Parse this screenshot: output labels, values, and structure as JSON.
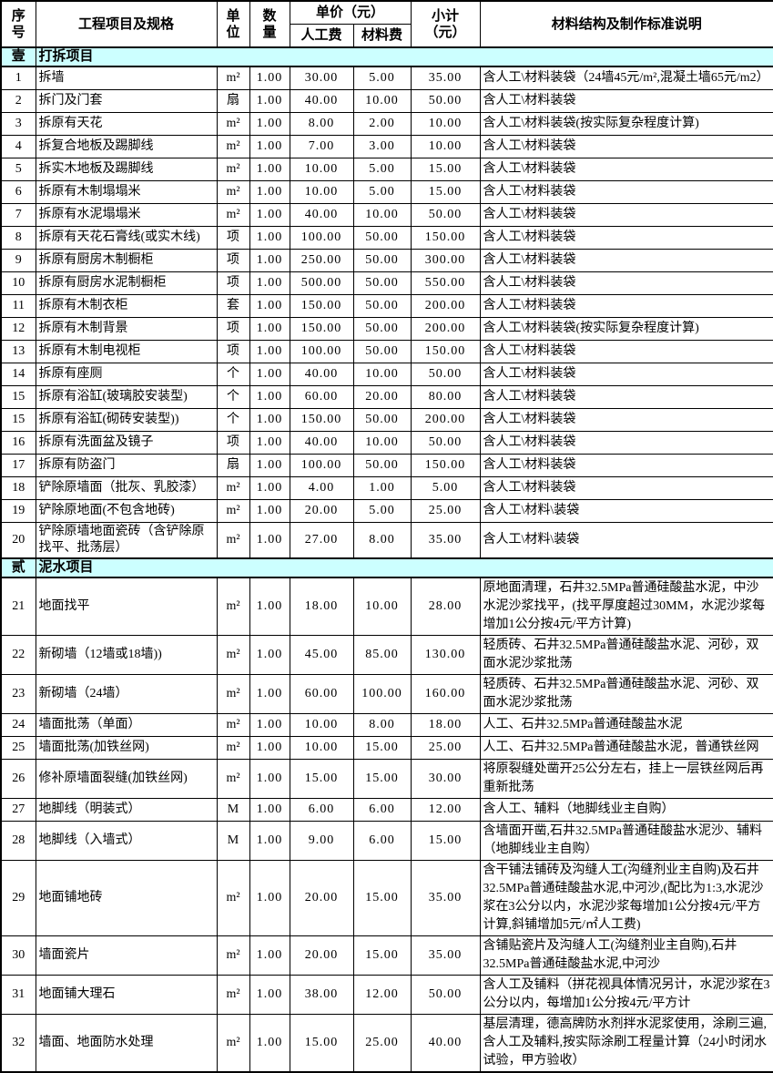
{
  "header": {
    "col_no": "序\n号",
    "col_item": "工程项目及规格",
    "col_unit": "单\n位",
    "col_qty": "数\n量",
    "col_unit_price": "单价（元）",
    "col_labor": "人工费",
    "col_material": "材料费",
    "col_subtotal": "小计\n（元）",
    "col_desc": "材料结构及制作标准说明"
  },
  "colors": {
    "section_bg": "#ccffff",
    "border": "#000000",
    "text": "#000000"
  },
  "sections": [
    {
      "index_label": "壹",
      "title": "打拆项目",
      "rows": [
        {
          "no": "1",
          "item": "拆墙",
          "unit": "m²",
          "qty": "1.00",
          "labor": "30.00",
          "material": "5.00",
          "subtotal": "35.00",
          "desc": "含人工\\材料装袋（24墙45元/m²,混凝土墙65元/m2）"
        },
        {
          "no": "2",
          "item": "拆门及门套",
          "unit": "扇",
          "qty": "1.00",
          "labor": "40.00",
          "material": "10.00",
          "subtotal": "50.00",
          "desc": "含人工\\材料装袋"
        },
        {
          "no": "3",
          "item": "拆原有天花",
          "unit": "m²",
          "qty": "1.00",
          "labor": "8.00",
          "material": "2.00",
          "subtotal": "10.00",
          "desc": "含人工\\材料装袋(按实际复杂程度计算)"
        },
        {
          "no": "4",
          "item": "拆复合地板及踢脚线",
          "unit": "m²",
          "qty": "1.00",
          "labor": "7.00",
          "material": "3.00",
          "subtotal": "10.00",
          "desc": "含人工\\材料装袋"
        },
        {
          "no": "5",
          "item": "拆实木地板及踢脚线",
          "unit": "m²",
          "qty": "1.00",
          "labor": "10.00",
          "material": "5.00",
          "subtotal": "15.00",
          "desc": "含人工\\材料装袋"
        },
        {
          "no": "6",
          "item": "拆原有木制塌塌米",
          "unit": "m²",
          "qty": "1.00",
          "labor": "10.00",
          "material": "5.00",
          "subtotal": "15.00",
          "desc": "含人工\\材料装袋"
        },
        {
          "no": "7",
          "item": "拆原有水泥塌塌米",
          "unit": "m²",
          "qty": "1.00",
          "labor": "40.00",
          "material": "10.00",
          "subtotal": "50.00",
          "desc": "含人工\\材料装袋"
        },
        {
          "no": "8",
          "item": "拆原有天花石膏线(或实木线)",
          "unit": "项",
          "qty": "1.00",
          "labor": "100.00",
          "material": "50.00",
          "subtotal": "150.00",
          "desc": "含人工\\材料装袋"
        },
        {
          "no": "9",
          "item": "拆原有厨房木制橱柜",
          "unit": "项",
          "qty": "1.00",
          "labor": "250.00",
          "material": "50.00",
          "subtotal": "300.00",
          "desc": "含人工\\材料装袋"
        },
        {
          "no": "10",
          "item": "拆原有厨房水泥制橱柜",
          "unit": "项",
          "qty": "1.00",
          "labor": "500.00",
          "material": "50.00",
          "subtotal": "550.00",
          "desc": "含人工\\材料装袋"
        },
        {
          "no": "11",
          "item": "拆原有木制衣柜",
          "unit": "套",
          "qty": "1.00",
          "labor": "150.00",
          "material": "50.00",
          "subtotal": "200.00",
          "desc": "含人工\\材料装袋"
        },
        {
          "no": "12",
          "item": "拆原有木制背景",
          "unit": "项",
          "qty": "1.00",
          "labor": "150.00",
          "material": "50.00",
          "subtotal": "200.00",
          "desc": "含人工\\材料装袋(按实际复杂程度计算)"
        },
        {
          "no": "13",
          "item": "拆原有木制电视柜",
          "unit": "项",
          "qty": "1.00",
          "labor": "100.00",
          "material": "50.00",
          "subtotal": "150.00",
          "desc": "含人工\\材料装袋"
        },
        {
          "no": "14",
          "item": "拆原有座厕",
          "unit": "个",
          "qty": "1.00",
          "labor": "40.00",
          "material": "10.00",
          "subtotal": "50.00",
          "desc": "含人工\\材料装袋"
        },
        {
          "no": "15",
          "item": "拆原有浴缸(玻璃胶安装型)",
          "unit": "个",
          "qty": "1.00",
          "labor": "60.00",
          "material": "20.00",
          "subtotal": "80.00",
          "desc": "含人工\\材料装袋"
        },
        {
          "no": "15",
          "item": "拆原有浴缸(砌砖安装型))",
          "unit": "个",
          "qty": "1.00",
          "labor": "150.00",
          "material": "50.00",
          "subtotal": "200.00",
          "desc": "含人工\\材料装袋"
        },
        {
          "no": "16",
          "item": "拆原有洗面盆及镜子",
          "unit": "项",
          "qty": "1.00",
          "labor": "40.00",
          "material": "10.00",
          "subtotal": "50.00",
          "desc": "含人工\\材料装袋"
        },
        {
          "no": "17",
          "item": "拆原有防盗门",
          "unit": "扇",
          "qty": "1.00",
          "labor": "100.00",
          "material": "50.00",
          "subtotal": "150.00",
          "desc": "含人工\\材料装袋"
        },
        {
          "no": "18",
          "item": "铲除原墙面（批灰、乳胶漆）",
          "unit": "m²",
          "qty": "1.00",
          "labor": "4.00",
          "material": "1.00",
          "subtotal": "5.00",
          "desc": "含人工\\材料装袋"
        },
        {
          "no": "19",
          "item": "铲除原地面(不包含地砖)",
          "unit": "m²",
          "qty": "1.00",
          "labor": "20.00",
          "material": "5.00",
          "subtotal": "25.00",
          "desc": "含人工\\材料\\装袋"
        },
        {
          "no": "20",
          "item": "铲除原墙地面瓷砖（含铲除原找平、批荡层）",
          "unit": "m²",
          "qty": "1.00",
          "labor": "27.00",
          "material": "8.00",
          "subtotal": "35.00",
          "desc": "含人工\\材料\\装袋"
        }
      ]
    },
    {
      "index_label": "贰",
      "title": "泥水项目",
      "rows": [
        {
          "no": "21",
          "item": "地面找平",
          "unit": "m²",
          "qty": "1.00",
          "labor": "18.00",
          "material": "10.00",
          "subtotal": "28.00",
          "desc": "原地面清理，石井32.5MPa普通硅酸盐水泥，中沙水泥沙浆找平，(找平厚度超过30MM，水泥沙浆每增加1公分按4元/平方计算)"
        },
        {
          "no": "22",
          "item": "新砌墙（12墙或18墙))",
          "unit": "m²",
          "qty": "1.00",
          "labor": "45.00",
          "material": "85.00",
          "subtotal": "130.00",
          "desc": "轻质砖、石井32.5MPa普通硅酸盐水泥、河砂，双面水泥沙浆批荡"
        },
        {
          "no": "23",
          "item": "新砌墙（24墙）",
          "unit": "m²",
          "qty": "1.00",
          "labor": "60.00",
          "material": "100.00",
          "subtotal": "160.00",
          "desc": "轻质砖、石井32.5MPa普通硅酸盐水泥、河砂、双面水泥沙浆批荡"
        },
        {
          "no": "24",
          "item": "墙面批荡（单面）",
          "unit": "m²",
          "qty": "1.00",
          "labor": "10.00",
          "material": "8.00",
          "subtotal": "18.00",
          "desc": "人工、石井32.5MPa普通硅酸盐水泥"
        },
        {
          "no": "25",
          "item": "墙面批荡(加铁丝网)",
          "unit": "m²",
          "qty": "1.00",
          "labor": "10.00",
          "material": "15.00",
          "subtotal": "25.00",
          "desc": "人工、石井32.5MPa普通硅酸盐水泥，普通铁丝网"
        },
        {
          "no": "26",
          "item": "修补原墙面裂缝(加铁丝网)",
          "unit": "m²",
          "qty": "1.00",
          "labor": "15.00",
          "material": "15.00",
          "subtotal": "30.00",
          "desc": "将原裂缝处凿开25公分左右，挂上一层铁丝网后再重新批荡"
        },
        {
          "no": "27",
          "item": "地脚线（明装式）",
          "unit": "M",
          "qty": "1.00",
          "labor": "6.00",
          "material": "6.00",
          "subtotal": "12.00",
          "desc": "含人工、辅料（地脚线业主自购）"
        },
        {
          "no": "28",
          "item": "地脚线（入墙式）",
          "unit": "M",
          "qty": "1.00",
          "labor": "9.00",
          "material": "6.00",
          "subtotal": "15.00",
          "desc": "含墙面开凿,石井32.5MPa普通硅酸盐水泥沙、辅料（地脚线业主自购）"
        },
        {
          "no": "29",
          "item": "地面铺地砖",
          "unit": "m²",
          "qty": "1.00",
          "labor": "20.00",
          "material": "15.00",
          "subtotal": "35.00",
          "desc": "含干铺法铺砖及沟缝人工(沟缝剂业主自购)及石井32.5MPa普通硅酸盐水泥,中河沙,(配比为1:3,水泥沙浆在3公分以内，水泥沙浆每增加1公分按4元/平方计算,斜铺增加5元/㎡人工费)"
        },
        {
          "no": "30",
          "item": "墙面瓷片",
          "unit": "m²",
          "qty": "1.00",
          "labor": "20.00",
          "material": "15.00",
          "subtotal": "35.00",
          "desc": "含铺贴瓷片及沟缝人工(沟缝剂业主自购),石井32.5MPa普通硅酸盐水泥,中河沙"
        },
        {
          "no": "31",
          "item": "地面铺大理石",
          "unit": "m²",
          "qty": "1.00",
          "labor": "38.00",
          "material": "12.00",
          "subtotal": "50.00",
          "desc": "含人工及铺料（拼花视具体情况另计，水泥沙浆在3公分以内，每增加1公分按4元/平方计"
        },
        {
          "no": "32",
          "item": "墙面、地面防水处理",
          "unit": "m²",
          "qty": "1.00",
          "labor": "15.00",
          "material": "25.00",
          "subtotal": "40.00",
          "desc": "基层清理，德高牌防水剂拌水泥浆使用，涂刷三遍,含人工及辅料,按实际涂刷工程量计算（24小时闭水试验，甲方验收）"
        }
      ]
    }
  ]
}
